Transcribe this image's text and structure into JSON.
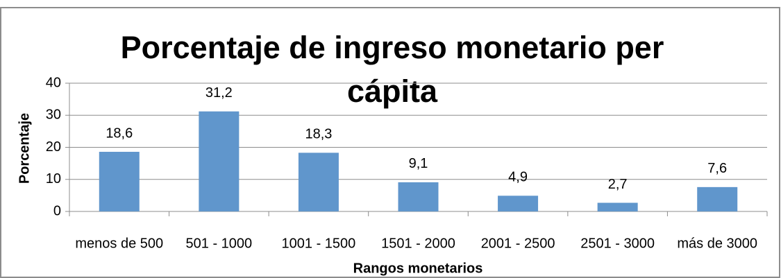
{
  "chart_data": {
    "type": "bar",
    "title": "Porcentaje de ingreso monetario per cápita",
    "x_label": "Rangos monetarios",
    "y_label": "Porcentaje",
    "categories": [
      "menos de 500",
      "501 - 1000",
      "1001 - 1500",
      "1501 - 2000",
      "2001 - 2500",
      "2501 - 3000",
      "más de 3000"
    ],
    "values": [
      18.6,
      31.2,
      18.3,
      9.1,
      4.9,
      2.7,
      7.6
    ],
    "value_labels": [
      "18,6",
      "31,2",
      "18,3",
      "9,1",
      "4,9",
      "2,7",
      "7,6"
    ],
    "color": "#6096cc",
    "ylim": [
      0,
      40
    ],
    "yticks": [
      0,
      10,
      20,
      30,
      40
    ],
    "grid": true
  }
}
